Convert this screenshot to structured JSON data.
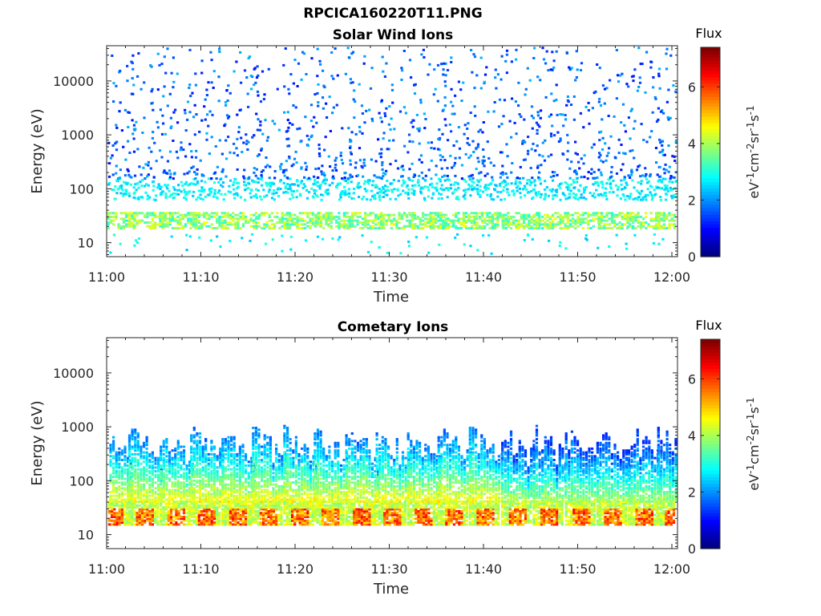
{
  "figure": {
    "filename": "RPCICA160220T11.PNG"
  },
  "colormap": "jet",
  "chart_data": [
    {
      "type": "heatmap",
      "title": "Solar Wind Ions",
      "xlabel": "Time",
      "ylabel": "Energy (eV)",
      "x_ticks": [
        "11:00",
        "11:10",
        "11:20",
        "11:30",
        "11:40",
        "11:50",
        "12:00"
      ],
      "xlim": [
        "11:00",
        "12:00"
      ],
      "y_scale": "log",
      "y_ticks": [
        10,
        100,
        1000,
        10000
      ],
      "y_tick_labels": [
        "10",
        "100",
        "1000",
        "10000"
      ],
      "ylim": [
        5.5,
        45000
      ],
      "colorbar": {
        "label": "Flux",
        "units_parts": [
          "eV",
          "-1",
          "cm",
          "-2",
          "sr",
          "-1",
          "s",
          "-1"
        ],
        "range": [
          0,
          7.4
        ],
        "ticks": [
          0,
          2,
          4,
          6
        ],
        "tick_labels": [
          "0",
          "2",
          "4",
          "6"
        ]
      },
      "sweep_minutes": [
        0.8,
        4.1,
        7.3,
        10.6,
        13.9,
        17.2,
        20.4,
        23.7,
        27.0,
        30.3,
        33.6,
        36.8,
        40.1,
        43.4,
        46.7,
        49.9,
        53.2,
        56.5,
        59.5
      ],
      "features": [
        {
          "name": "low-energy band",
          "energy_range_eV": [
            18,
            35
          ],
          "flux_range": [
            3.0,
            4.6
          ]
        },
        {
          "name": "cyan band",
          "energy_range_eV": [
            60,
            150
          ],
          "flux_range": [
            2.3,
            3.1
          ]
        },
        {
          "name": "scattered high-energy counts",
          "energy_range_eV": [
            150,
            40000
          ],
          "flux_range": [
            1.0,
            2.3
          ]
        }
      ]
    },
    {
      "type": "heatmap",
      "title": "Cometary Ions",
      "xlabel": "Time",
      "ylabel": "Energy (eV)",
      "x_ticks": [
        "11:00",
        "11:10",
        "11:20",
        "11:30",
        "11:40",
        "11:50",
        "12:00"
      ],
      "xlim": [
        "11:00",
        "12:00"
      ],
      "y_scale": "log",
      "y_ticks": [
        10,
        100,
        1000,
        10000
      ],
      "y_tick_labels": [
        "10",
        "100",
        "1000",
        "10000"
      ],
      "ylim": [
        5.5,
        45000
      ],
      "colorbar": {
        "label": "Flux",
        "units_parts": [
          "eV",
          "-1",
          "cm",
          "-2",
          "sr",
          "-1",
          "s",
          "-1"
        ],
        "range": [
          0,
          7.4
        ],
        "ticks": [
          0,
          2,
          4,
          6
        ],
        "tick_labels": [
          "0",
          "2",
          "4",
          "6"
        ]
      },
      "sweep_minutes": [
        0.5,
        3.7,
        7.0,
        10.2,
        13.5,
        16.7,
        20.0,
        23.2,
        26.5,
        29.7,
        33.0,
        36.2,
        39.5,
        42.9,
        46.2,
        49.6,
        52.9,
        56.2,
        59.3
      ],
      "features": [
        {
          "name": "low-energy band",
          "energy_range_eV": [
            15,
            40
          ],
          "flux_range": [
            4.0,
            6.5
          ]
        },
        {
          "name": "broad vertical streaks",
          "energy_range_eV": [
            40,
            1200
          ],
          "flux_range": [
            1.5,
            4.6
          ]
        }
      ]
    }
  ]
}
